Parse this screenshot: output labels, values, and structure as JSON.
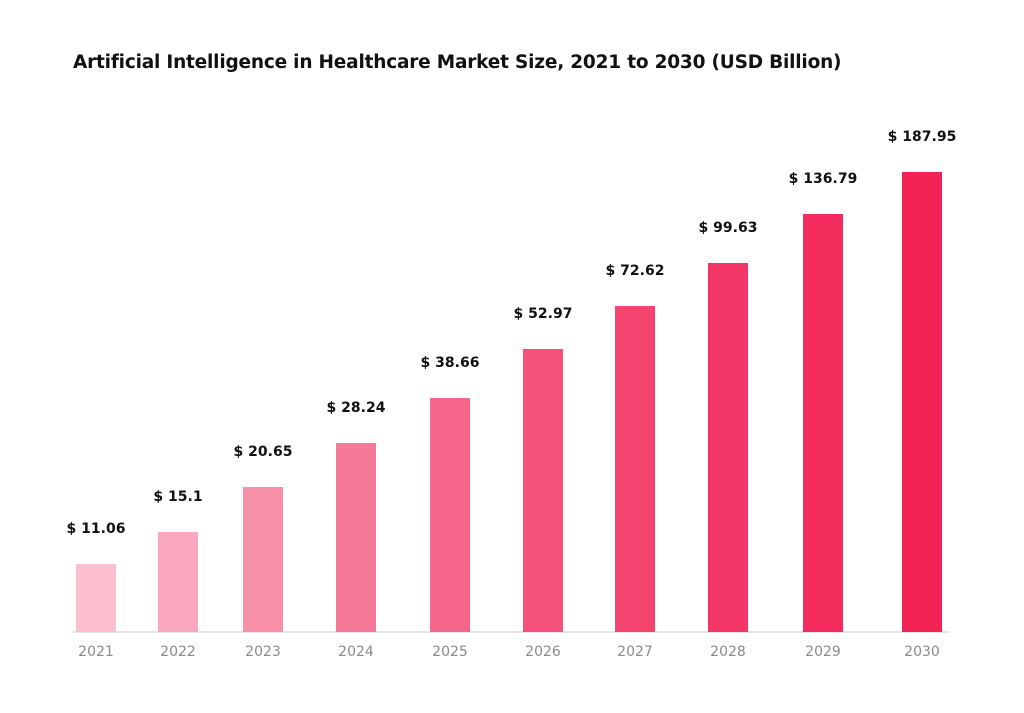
{
  "chart_data": {
    "type": "bar",
    "title": "Artificial Intelligence in Healthcare Market Size, 2021 to 2030 (USD Billion)",
    "xlabel": "",
    "ylabel": "",
    "categories": [
      "2021",
      "2022",
      "2023",
      "2024",
      "2025",
      "2026",
      "2027",
      "2028",
      "2029",
      "2030"
    ],
    "values": [
      11.06,
      15.1,
      20.65,
      28.24,
      38.66,
      52.97,
      72.62,
      99.63,
      136.79,
      187.95
    ],
    "data_labels": [
      "$ 11.06",
      "$ 15.1",
      "$ 20.65",
      "$ 28.24",
      "$ 38.66",
      "$ 52.97",
      "$ 72.62",
      "$ 99.63",
      "$ 136.79",
      "$ 187.95"
    ],
    "unit": "USD Billion",
    "grid": false,
    "legend": "none",
    "colors": [
      "#fbbfcf",
      "#f9a8bd",
      "#f78fa9",
      "#f67a98",
      "#f5668a",
      "#f5527c",
      "#f44570",
      "#f43766",
      "#f42c5e",
      "#f32455"
    ]
  }
}
